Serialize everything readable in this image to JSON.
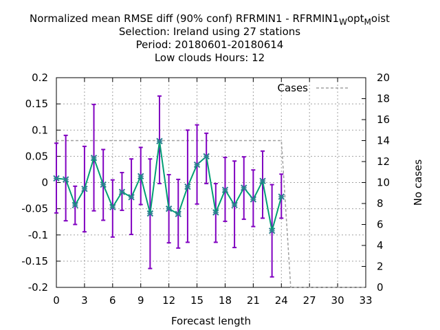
{
  "chart_data": {
    "type": "line",
    "title_lines": [
      "Normalized mean RMSE diff (90% conf) RFRMIN1 - RFRMIN1",
      "Selection: Ireland using    27 stations",
      "Period: 20180601-20180614",
      "Low clouds   Hours:  12"
    ],
    "title_subscript_parts": [
      "W",
      "opt",
      "M",
      "oist"
    ],
    "xlabel": "Forecast length",
    "ylabel": "",
    "y2label": "No cases",
    "xlim": [
      0,
      33
    ],
    "ylim": [
      -0.2,
      0.2
    ],
    "y2lim": [
      0,
      20
    ],
    "x_ticks": [
      "0",
      "3",
      "6",
      "9",
      "12",
      "15",
      "18",
      "21",
      "24",
      "27",
      "30",
      "33"
    ],
    "y_ticks": [
      "0.2",
      "0.15",
      "0.1",
      "0.05",
      "0",
      "-0.05",
      "-0.1",
      "-0.15",
      "-0.2"
    ],
    "y2_ticks": [
      "20",
      "18",
      "16",
      "14",
      "12",
      "10",
      "8",
      "6",
      "4",
      "2",
      "0"
    ],
    "grid": true,
    "legend_position": "top-right",
    "colors": {
      "mean_line": "#009e73",
      "error_bars": "#8000c0",
      "markers": "#2a7f8f",
      "cases": "#a0a0a0",
      "grid": "#a0a0a0"
    },
    "series": [
      {
        "type": "errorbar",
        "x": [
          0,
          1,
          2,
          3,
          4,
          5,
          6,
          7,
          8,
          9,
          10,
          11,
          12,
          13,
          14,
          15,
          16,
          17,
          18,
          19,
          20,
          21,
          22,
          23,
          24
        ],
        "y": [
          0.008,
          0.006,
          -0.043,
          -0.012,
          0.047,
          -0.004,
          -0.047,
          -0.018,
          -0.028,
          0.012,
          -0.059,
          0.079,
          -0.05,
          -0.06,
          -0.008,
          0.034,
          0.05,
          -0.057,
          -0.014,
          -0.043,
          -0.01,
          -0.032,
          0.003,
          -0.092,
          -0.027
        ],
        "ylow": [
          -0.058,
          -0.073,
          -0.08,
          -0.094,
          -0.054,
          -0.072,
          -0.104,
          -0.053,
          -0.099,
          -0.042,
          -0.164,
          -0.002,
          -0.115,
          -0.125,
          -0.114,
          -0.041,
          -0.002,
          -0.114,
          -0.074,
          -0.124,
          -0.07,
          -0.084,
          -0.068,
          -0.18,
          -0.068
        ],
        "yhigh": [
          0.075,
          0.09,
          -0.007,
          0.069,
          0.149,
          0.063,
          0.005,
          0.019,
          0.045,
          0.067,
          0.045,
          0.165,
          0.015,
          0.006,
          0.1,
          0.11,
          0.094,
          -0.002,
          0.048,
          0.041,
          0.049,
          0.024,
          0.06,
          -0.004,
          0.016
        ]
      },
      {
        "name": "Cases",
        "type": "line",
        "axis": "y2",
        "x": [
          0,
          24,
          25,
          33
        ],
        "y": [
          14,
          14,
          0,
          0
        ]
      }
    ]
  }
}
